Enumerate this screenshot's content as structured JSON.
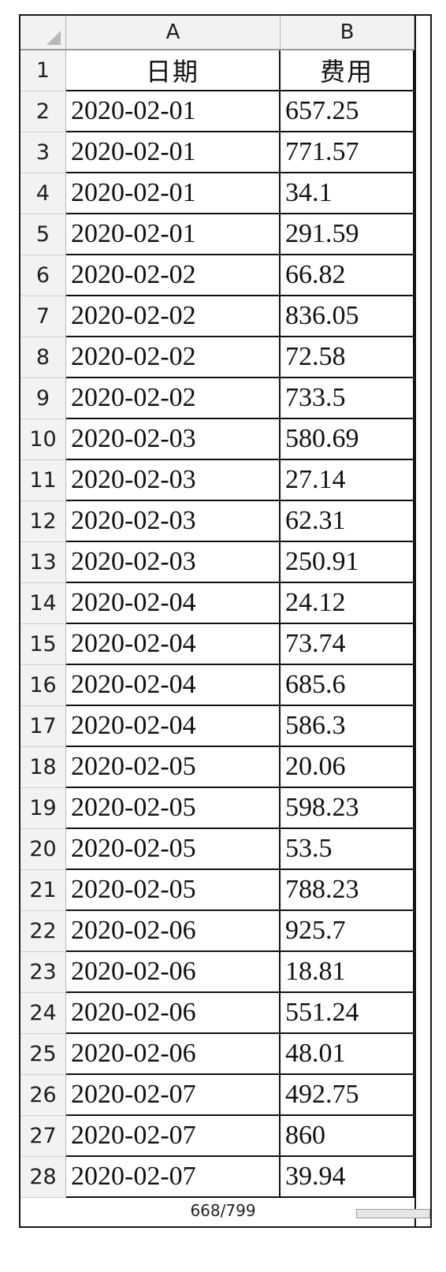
{
  "columns": {
    "a": "A",
    "b": "B"
  },
  "header": {
    "row": "1",
    "a": "日期",
    "b": "费用"
  },
  "rows": [
    {
      "n": "2",
      "date": "2020-02-01",
      "cost": "657.25"
    },
    {
      "n": "3",
      "date": "2020-02-01",
      "cost": "771.57"
    },
    {
      "n": "4",
      "date": "2020-02-01",
      "cost": "34.1"
    },
    {
      "n": "5",
      "date": "2020-02-01",
      "cost": "291.59"
    },
    {
      "n": "6",
      "date": "2020-02-02",
      "cost": "66.82"
    },
    {
      "n": "7",
      "date": "2020-02-02",
      "cost": "836.05"
    },
    {
      "n": "8",
      "date": "2020-02-02",
      "cost": "72.58"
    },
    {
      "n": "9",
      "date": "2020-02-02",
      "cost": "733.5"
    },
    {
      "n": "10",
      "date": "2020-02-03",
      "cost": "580.69"
    },
    {
      "n": "11",
      "date": "2020-02-03",
      "cost": "27.14"
    },
    {
      "n": "12",
      "date": "2020-02-03",
      "cost": "62.31"
    },
    {
      "n": "13",
      "date": "2020-02-03",
      "cost": "250.91"
    },
    {
      "n": "14",
      "date": "2020-02-04",
      "cost": "24.12"
    },
    {
      "n": "15",
      "date": "2020-02-04",
      "cost": "73.74"
    },
    {
      "n": "16",
      "date": "2020-02-04",
      "cost": "685.6"
    },
    {
      "n": "17",
      "date": "2020-02-04",
      "cost": "586.3"
    },
    {
      "n": "18",
      "date": "2020-02-05",
      "cost": "20.06"
    },
    {
      "n": "19",
      "date": "2020-02-05",
      "cost": "598.23"
    },
    {
      "n": "20",
      "date": "2020-02-05",
      "cost": "53.5"
    },
    {
      "n": "21",
      "date": "2020-02-05",
      "cost": "788.23"
    },
    {
      "n": "22",
      "date": "2020-02-06",
      "cost": "925.7"
    },
    {
      "n": "23",
      "date": "2020-02-06",
      "cost": "18.81"
    },
    {
      "n": "24",
      "date": "2020-02-06",
      "cost": "551.24"
    },
    {
      "n": "25",
      "date": "2020-02-06",
      "cost": "48.01"
    },
    {
      "n": "26",
      "date": "2020-02-07",
      "cost": "492.75"
    },
    {
      "n": "27",
      "date": "2020-02-07",
      "cost": "860"
    },
    {
      "n": "28",
      "date": "2020-02-07",
      "cost": "39.94"
    }
  ],
  "page_counter": "668/799"
}
